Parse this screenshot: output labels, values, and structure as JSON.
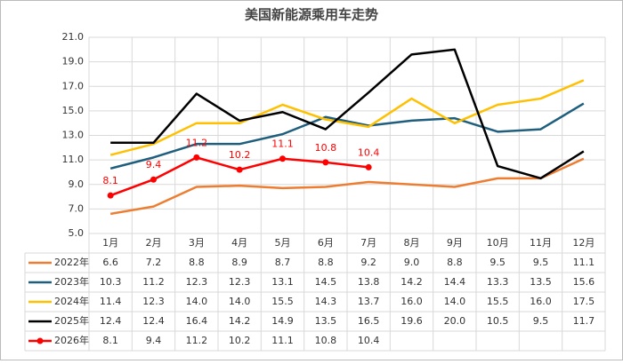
{
  "chart_data": {
    "type": "line",
    "title": "美国新能源乘用车走势",
    "categories": [
      "1月",
      "2月",
      "3月",
      "4月",
      "5月",
      "6月",
      "7月",
      "8月",
      "9月",
      "10月",
      "11月",
      "12月"
    ],
    "ylim": [
      5,
      21
    ],
    "yticks": [
      {
        "value": 5,
        "label": "5.0"
      },
      {
        "value": 7,
        "label": "7.0"
      },
      {
        "value": 9,
        "label": "9.0"
      },
      {
        "value": 11,
        "label": "11.0"
      },
      {
        "value": 13,
        "label": "13.0"
      },
      {
        "value": 15,
        "label": "15.0"
      },
      {
        "value": 17,
        "label": "17.0"
      },
      {
        "value": 19,
        "label": "19.0"
      },
      {
        "value": 21,
        "label": "21.0"
      }
    ],
    "grid": true,
    "series": [
      {
        "name": "2022年",
        "color": "#ED7D31",
        "values": [
          6.6,
          7.2,
          8.8,
          8.9,
          8.7,
          8.8,
          9.2,
          9.0,
          8.8,
          9.5,
          9.5,
          11.1
        ],
        "value_labels": [
          "6.6",
          "7.2",
          "8.8",
          "8.9",
          "8.7",
          "8.8",
          "9.2",
          "9.0",
          "8.8",
          "9.5",
          "9.5",
          "11.1"
        ]
      },
      {
        "name": "2023年",
        "color": "#1F5F7D",
        "values": [
          10.3,
          11.2,
          12.3,
          12.3,
          13.1,
          14.5,
          13.8,
          14.2,
          14.4,
          13.3,
          13.5,
          15.6
        ],
        "value_labels": [
          "10.3",
          "11.2",
          "12.3",
          "12.3",
          "13.1",
          "14.5",
          "13.8",
          "14.2",
          "14.4",
          "13.3",
          "13.5",
          "15.6"
        ]
      },
      {
        "name": "2024年",
        "color": "#FFC000",
        "values": [
          11.4,
          12.3,
          14.0,
          14.0,
          15.5,
          14.3,
          13.7,
          16.0,
          14.0,
          15.5,
          16.0,
          17.5
        ],
        "value_labels": [
          "11.4",
          "12.3",
          "14.0",
          "14.0",
          "15.5",
          "14.3",
          "13.7",
          "16.0",
          "14.0",
          "15.5",
          "16.0",
          "17.5"
        ]
      },
      {
        "name": "2025年",
        "color": "#000000",
        "values": [
          12.4,
          12.4,
          16.4,
          14.2,
          14.9,
          13.5,
          16.5,
          19.6,
          20.0,
          10.5,
          9.5,
          11.7
        ],
        "value_labels": [
          "12.4",
          "12.4",
          "16.4",
          "14.2",
          "14.9",
          "13.5",
          "16.5",
          "19.6",
          "20.0",
          "10.5",
          "9.5",
          "11.7"
        ]
      },
      {
        "name": "2026年",
        "color": "#FF0000",
        "markers": true,
        "data_labels": true,
        "values": [
          8.1,
          9.4,
          11.2,
          10.2,
          11.1,
          10.8,
          10.4,
          null,
          null,
          null,
          null,
          null
        ],
        "value_labels": [
          "8.1",
          "9.4",
          "11.2",
          "10.2",
          "11.1",
          "10.8",
          "10.4",
          null,
          null,
          null,
          null,
          null
        ]
      }
    ]
  }
}
